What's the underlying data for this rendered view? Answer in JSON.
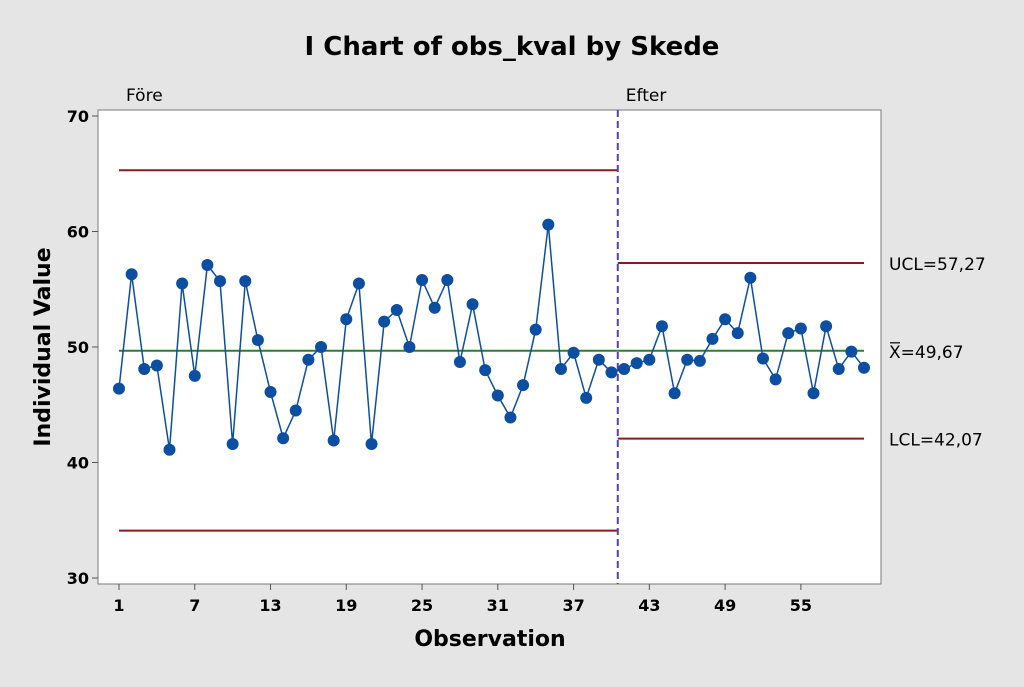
{
  "chart_data": {
    "type": "line",
    "title": "I Chart of obs_kval by Skede",
    "xlabel": "Observation",
    "ylabel": "Individual Value",
    "xlim": [
      1,
      60
    ],
    "ylim": [
      30,
      70
    ],
    "x_ticks": [
      1,
      7,
      13,
      19,
      25,
      31,
      37,
      43,
      49,
      55
    ],
    "y_ticks": [
      30,
      40,
      50,
      60,
      70
    ],
    "grid": false,
    "stages": [
      {
        "name": "Före",
        "start": 1,
        "end": 40.5,
        "ucl": 65.3,
        "center": 49.67,
        "lcl": 34.1
      },
      {
        "name": "Efter",
        "start": 40.5,
        "end": 60,
        "ucl": 57.27,
        "center": 49.67,
        "lcl": 42.07
      }
    ],
    "stage_boundary_x": 40.5,
    "reference_labels": {
      "ucl": "UCL=57,27",
      "center": "X=49,67",
      "lcl": "LCL=42,07"
    },
    "series": [
      {
        "x": [
          1,
          2,
          3,
          4,
          5,
          6,
          7,
          8,
          9,
          10,
          11,
          12,
          13,
          14,
          15,
          16,
          17,
          18,
          19,
          20,
          21,
          22,
          23,
          24,
          25,
          26,
          27,
          28,
          29,
          30,
          31,
          32,
          33,
          34,
          35,
          36,
          37,
          38,
          39,
          40,
          41,
          42,
          43,
          44,
          45,
          46,
          47,
          48,
          49,
          50,
          51,
          52,
          53,
          54,
          55,
          56,
          57,
          58,
          59,
          60
        ],
        "values": [
          46.4,
          56.3,
          48.1,
          48.4,
          41.1,
          55.5,
          47.5,
          57.1,
          55.7,
          41.6,
          55.7,
          50.6,
          46.1,
          42.1,
          44.5,
          48.9,
          50.0,
          41.9,
          52.4,
          55.5,
          41.6,
          52.2,
          53.2,
          50.0,
          55.8,
          53.4,
          55.8,
          48.7,
          53.7,
          48.0,
          45.8,
          43.9,
          46.7,
          51.5,
          60.6,
          48.1,
          49.5,
          45.6,
          48.9,
          47.8,
          48.1,
          48.6,
          48.9,
          51.8,
          46.0,
          48.9,
          48.8,
          50.7,
          52.4,
          51.2,
          56.0,
          49.0,
          47.2,
          51.2,
          51.6,
          46.0,
          51.8,
          48.1,
          49.6,
          48.2
        ]
      }
    ],
    "colors": {
      "data": "#0b4ea2",
      "control_limits": "#8b1a1a",
      "center_line": "#2e7d32",
      "stage_divider": "#5b3fa8",
      "background": "#e5e5e5",
      "plot_background": "#ffffff"
    }
  }
}
